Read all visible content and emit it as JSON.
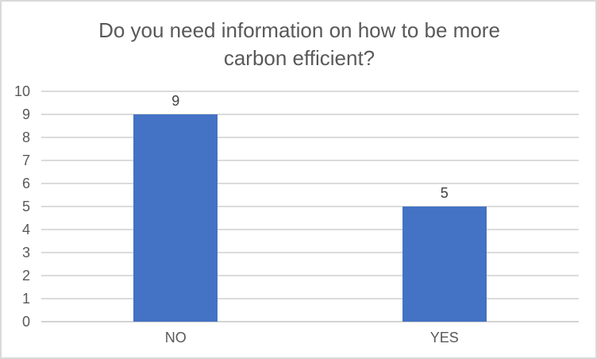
{
  "chart_data": {
    "type": "bar",
    "title": "Do you need information on how to be more carbon efficient?",
    "categories": [
      "NO",
      "YES"
    ],
    "values": [
      9,
      5
    ],
    "data_labels": [
      "9",
      "5"
    ],
    "xlabel": "",
    "ylabel": "",
    "ylim": [
      0,
      10
    ],
    "ytick_step": 1,
    "grid": true,
    "legend": "none",
    "colors": {
      "bar": "#4472C4",
      "gridline": "#DBDBDB",
      "axis_line": "#D3D3D3",
      "title_text": "#595959",
      "axis_text": "#595959",
      "data_label_text": "#404040",
      "background": "#FFFFFF",
      "border": "#D9D9D9"
    }
  }
}
